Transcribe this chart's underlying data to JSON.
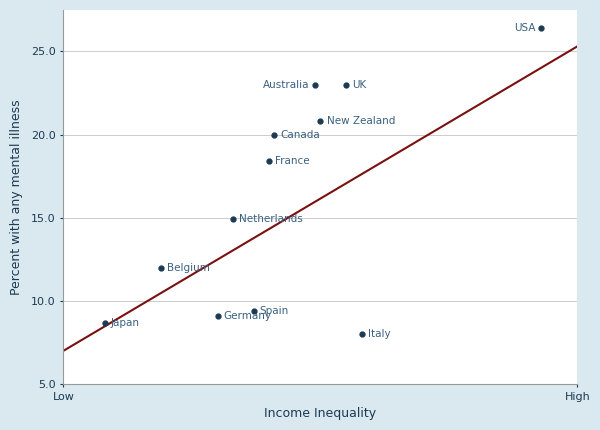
{
  "countries": [
    "Japan",
    "Belgium",
    "Germany",
    "Netherlands",
    "Spain",
    "France",
    "Canada",
    "New Zealand",
    "Australia",
    "UK",
    "Italy",
    "USA"
  ],
  "x": [
    0.08,
    0.19,
    0.3,
    0.33,
    0.37,
    0.4,
    0.41,
    0.5,
    0.49,
    0.55,
    0.58,
    0.93
  ],
  "y": [
    8.7,
    12.0,
    9.1,
    14.9,
    9.4,
    18.4,
    20.0,
    20.8,
    23.0,
    23.0,
    8.0,
    26.4
  ],
  "label_ha": {
    "Japan": "left",
    "Belgium": "left",
    "Germany": "left",
    "Netherlands": "left",
    "Spain": "left",
    "France": "left",
    "Canada": "left",
    "New Zealand": "left",
    "Australia": "right",
    "UK": "left",
    "Italy": "left",
    "USA": "right"
  },
  "label_dx": {
    "Japan": 0.012,
    "Belgium": 0.012,
    "Germany": 0.012,
    "Netherlands": 0.012,
    "Spain": 0.012,
    "France": 0.012,
    "Canada": 0.012,
    "New Zealand": 0.012,
    "Australia": -0.012,
    "UK": 0.012,
    "Italy": 0.012,
    "USA": -0.012
  },
  "label_dy": {
    "Japan": 0.0,
    "Belgium": 0.0,
    "Germany": 0.0,
    "Netherlands": 0.0,
    "Spain": 0.0,
    "France": 0.0,
    "Canada": 0.0,
    "New Zealand": 0.0,
    "Australia": 0.0,
    "UK": 0.0,
    "Italy": 0.0,
    "USA": 0.0
  },
  "dot_color": "#1c3a52",
  "line_color": "#7a1010",
  "label_color": "#3a6080",
  "outer_bg_color": "#dae8f0",
  "plot_bg_color": "#ffffff",
  "ylabel": "Percent with any mental illness",
  "xlabel": "Income Inequality",
  "ylim": [
    5.0,
    27.5
  ],
  "xlim": [
    0.0,
    1.0
  ],
  "yticks": [
    5.0,
    10.0,
    15.0,
    20.0,
    25.0
  ],
  "xtick_positions": [
    0.0,
    1.0
  ],
  "xtick_labels": [
    "Low",
    "High"
  ],
  "line_x": [
    0.0,
    1.0
  ],
  "line_y": [
    7.0,
    25.3
  ],
  "font_size_labels": 7.5,
  "font_size_ticks": 8.0,
  "font_size_axis": 9.0
}
